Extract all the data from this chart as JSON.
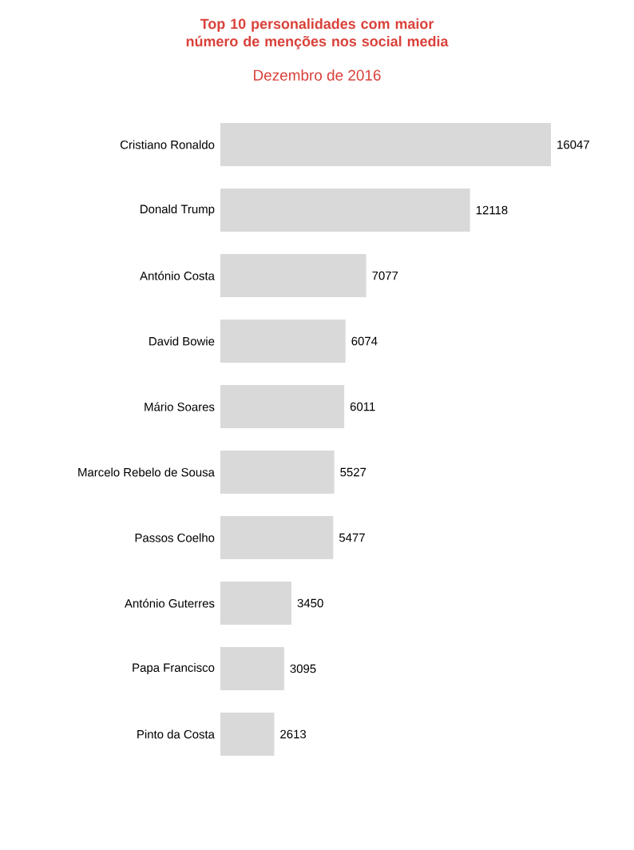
{
  "chart_data": {
    "type": "bar",
    "orientation": "horizontal",
    "title": "Top 10 personalidades com maior número de menções nos social media",
    "subtitle": "Dezembro de 2016",
    "categories": [
      "Cristiano Ronaldo",
      "Donald Trump",
      "António Costa",
      "David Bowie",
      "Mário Soares",
      "Marcelo Rebelo de Sousa",
      "Passos Coelho",
      "António Guterres",
      "Papa Francisco",
      "Pinto da Costa"
    ],
    "values": [
      16047,
      12118,
      7077,
      6074,
      6011,
      5527,
      5477,
      3450,
      3095,
      2613
    ],
    "color": "#d9d9d9",
    "data_labels": true
  }
}
